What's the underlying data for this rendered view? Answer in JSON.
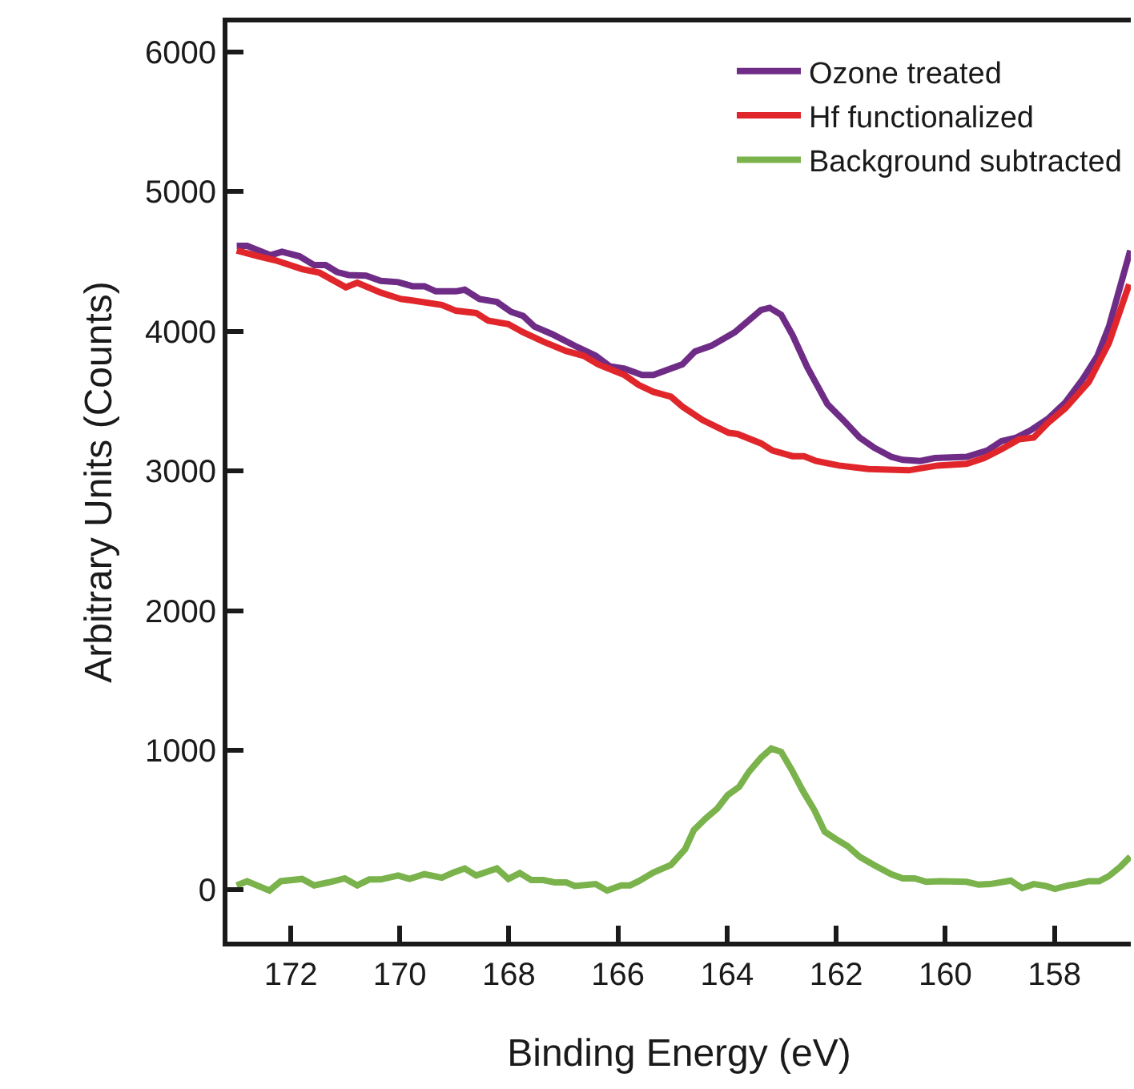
{
  "chart_data": {
    "type": "line",
    "xlabel": "Binding Energy (eV)",
    "ylabel": "Arbitrary Units (Counts)",
    "xlim": [
      173.16,
      156.6
    ],
    "ylim": [
      -370,
      6210
    ],
    "xticks": [
      172,
      170,
      168,
      166,
      164,
      162,
      160,
      158
    ],
    "yticks": [
      0,
      1000,
      2000,
      3000,
      4000,
      5000,
      6000
    ],
    "legend": "top right",
    "marker": "none",
    "line_style": "solid",
    "series": [
      {
        "name": "Ozone treated",
        "color": "#6f2c87",
        "x": [
          172.99,
          172.8,
          172.37,
          172.16,
          171.84,
          171.57,
          171.36,
          171.15,
          170.94,
          170.62,
          170.35,
          170.03,
          169.77,
          169.55,
          169.34,
          168.97,
          168.81,
          168.54,
          168.22,
          167.96,
          167.74,
          167.53,
          167.21,
          166.73,
          166.41,
          166.15,
          165.88,
          165.56,
          165.35,
          165.09,
          164.82,
          164.59,
          164.29,
          163.86,
          163.38,
          163.22,
          163.01,
          162.8,
          162.53,
          162.16,
          161.84,
          161.57,
          161.31,
          160.99,
          160.78,
          160.46,
          160.19,
          159.61,
          159.23,
          158.97,
          158.7,
          158.44,
          158.12,
          157.8,
          157.48,
          157.21,
          157.0,
          156.79,
          156.61
        ],
        "values": [
          4611,
          4611,
          4544,
          4569,
          4536,
          4473,
          4473,
          4423,
          4402,
          4398,
          4360,
          4351,
          4322,
          4322,
          4285,
          4285,
          4297,
          4230,
          4209,
          4138,
          4109,
          4033,
          3979,
          3883,
          3824,
          3749,
          3732,
          3686,
          3686,
          3724,
          3762,
          3854,
          3895,
          3992,
          4151,
          4167,
          4117,
          3971,
          3741,
          3477,
          3351,
          3238,
          3167,
          3100,
          3079,
          3071,
          3092,
          3100,
          3146,
          3213,
          3238,
          3289,
          3372,
          3490,
          3657,
          3824,
          4033,
          4326,
          4577
        ]
      },
      {
        "name": "Hf functionalized",
        "color": "#e0262b",
        "x": [
          172.99,
          172.59,
          172.27,
          171.79,
          171.47,
          170.99,
          170.78,
          170.35,
          169.98,
          169.82,
          169.23,
          168.97,
          168.6,
          168.38,
          168.01,
          167.74,
          167.37,
          166.95,
          166.63,
          166.36,
          165.88,
          165.62,
          165.35,
          165.03,
          164.82,
          164.45,
          163.97,
          163.81,
          163.38,
          163.17,
          162.8,
          162.59,
          162.37,
          161.95,
          161.41,
          160.67,
          160.14,
          159.61,
          159.29,
          158.97,
          158.65,
          158.38,
          158.12,
          157.8,
          157.37,
          157.0,
          156.63
        ],
        "values": [
          4577,
          4536,
          4506,
          4444,
          4418,
          4314,
          4347,
          4276,
          4230,
          4222,
          4188,
          4146,
          4130,
          4075,
          4050,
          3992,
          3925,
          3858,
          3824,
          3762,
          3686,
          3615,
          3565,
          3531,
          3460,
          3364,
          3272,
          3264,
          3197,
          3146,
          3105,
          3105,
          3071,
          3038,
          3013,
          3004,
          3038,
          3050,
          3092,
          3155,
          3226,
          3238,
          3343,
          3448,
          3636,
          3916,
          4335
        ]
      },
      {
        "name": "Background subtracted",
        "color": "#7ab24c",
        "x": [
          172.99,
          172.8,
          172.39,
          172.18,
          171.79,
          171.57,
          171.31,
          171.01,
          170.78,
          170.56,
          170.35,
          170.03,
          169.82,
          169.55,
          169.23,
          169.02,
          168.81,
          168.6,
          168.22,
          168.01,
          167.8,
          167.59,
          167.37,
          167.16,
          166.95,
          166.79,
          166.41,
          166.2,
          165.94,
          165.78,
          165.62,
          165.35,
          165.03,
          164.77,
          164.61,
          164.39,
          164.18,
          163.99,
          163.78,
          163.6,
          163.38,
          163.19,
          163.01,
          162.82,
          162.61,
          162.4,
          162.21,
          162.0,
          161.79,
          161.57,
          161.31,
          160.99,
          160.78,
          160.56,
          160.35,
          160.09,
          159.61,
          159.39,
          159.18,
          158.8,
          158.59,
          158.38,
          158.16,
          157.99,
          157.74,
          157.59,
          157.37,
          157.18,
          157.0,
          156.79,
          156.61
        ],
        "values": [
          33,
          63,
          -4,
          63,
          79,
          33,
          54,
          83,
          33,
          75,
          75,
          104,
          79,
          113,
          88,
          125,
          154,
          104,
          154,
          79,
          121,
          71,
          71,
          54,
          54,
          29,
          42,
          -4,
          33,
          33,
          63,
          125,
          179,
          292,
          429,
          513,
          583,
          679,
          738,
          846,
          946,
          1013,
          988,
          863,
          708,
          571,
          417,
          363,
          313,
          238,
          179,
          113,
          83,
          83,
          58,
          63,
          58,
          38,
          42,
          67,
          13,
          42,
          29,
          8,
          33,
          42,
          63,
          63,
          100,
          167,
          238
        ]
      }
    ]
  }
}
